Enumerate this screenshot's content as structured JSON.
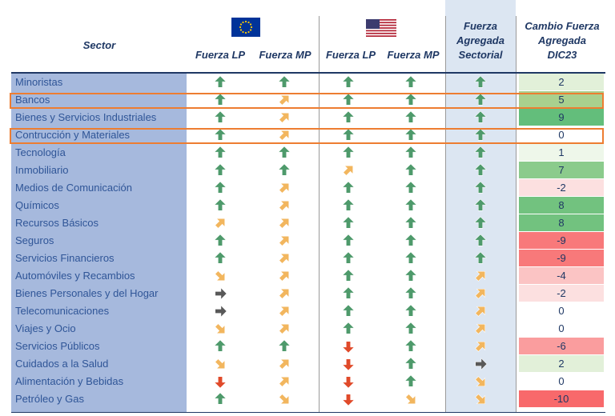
{
  "headers": {
    "sector": "Sector",
    "eu_lp": "Fuerza LP",
    "eu_mp": "Fuerza MP",
    "us_lp": "Fuerza LP",
    "us_mp": "Fuerza MP",
    "agg_l1": "Fuerza",
    "agg_l2": "Agregada",
    "agg_l3": "Sectorial",
    "chg_l1": "Cambio Fuerza",
    "chg_l2": "Agregada",
    "chg_l3": "DIC23"
  },
  "flags": {
    "eu": "eu-flag-icon",
    "us": "us-flag-icon"
  },
  "icon_colors": {
    "up": "#4E9A6B",
    "up_right": "#F2B65E",
    "right": "#595959",
    "down_right": "#F2B65E",
    "down": "#E04A2A"
  },
  "highlight_color": "#ED7D31",
  "highlighted_rows": [
    "Bancos",
    "Contrucción y Materiales"
  ],
  "rows": [
    {
      "sector": "Minoristas",
      "eu_lp": "up",
      "eu_mp": "up",
      "us_lp": "up",
      "us_mp": "up",
      "agg": "up",
      "change": "2",
      "change_color": "#E2F0D9"
    },
    {
      "sector": "Bancos",
      "eu_lp": "up",
      "eu_mp": "up_right",
      "us_lp": "up",
      "us_mp": "up",
      "agg": "up",
      "change": "5",
      "change_color": "#A9D08E"
    },
    {
      "sector": "Bienes y Servicios Industriales",
      "eu_lp": "up",
      "eu_mp": "up_right",
      "us_lp": "up",
      "us_mp": "up",
      "agg": "up",
      "change": "9",
      "change_color": "#63BE7B"
    },
    {
      "sector": "Contrucción y Materiales",
      "eu_lp": "up",
      "eu_mp": "up_right",
      "us_lp": "up",
      "us_mp": "up",
      "agg": "up",
      "change": "0",
      "change_color": "#FFFFFF"
    },
    {
      "sector": "Tecnología",
      "eu_lp": "up",
      "eu_mp": "up",
      "us_lp": "up",
      "us_mp": "up",
      "agg": "up",
      "change": "1",
      "change_color": "#EEF7EA"
    },
    {
      "sector": "Inmobiliario",
      "eu_lp": "up",
      "eu_mp": "up",
      "us_lp": "up_right",
      "us_mp": "up",
      "agg": "up",
      "change": "7",
      "change_color": "#8BCB8C"
    },
    {
      "sector": "Medios de Comunicación",
      "eu_lp": "up",
      "eu_mp": "up_right",
      "us_lp": "up",
      "us_mp": "up",
      "agg": "up",
      "change": "-2",
      "change_color": "#FCE0E0"
    },
    {
      "sector": "Químicos",
      "eu_lp": "up",
      "eu_mp": "up_right",
      "us_lp": "up",
      "us_mp": "up",
      "agg": "up",
      "change": "8",
      "change_color": "#72C27F"
    },
    {
      "sector": "Recursos Básicos",
      "eu_lp": "up_right",
      "eu_mp": "up_right",
      "us_lp": "up",
      "us_mp": "up",
      "agg": "up",
      "change": "8",
      "change_color": "#72C27F"
    },
    {
      "sector": "Seguros",
      "eu_lp": "up",
      "eu_mp": "up_right",
      "us_lp": "up",
      "us_mp": "up",
      "agg": "up",
      "change": "-9",
      "change_color": "#F8797A"
    },
    {
      "sector": "Servicios Financieros",
      "eu_lp": "up",
      "eu_mp": "up_right",
      "us_lp": "up",
      "us_mp": "up",
      "agg": "up",
      "change": "-9",
      "change_color": "#F8797A"
    },
    {
      "sector": "Automóviles y Recambios",
      "eu_lp": "down_right",
      "eu_mp": "up_right",
      "us_lp": "up",
      "us_mp": "up",
      "agg": "up_right",
      "change": "-4",
      "change_color": "#FBC4C4"
    },
    {
      "sector": "Bienes Personales y del Hogar",
      "eu_lp": "right",
      "eu_mp": "up_right",
      "us_lp": "up",
      "us_mp": "up",
      "agg": "up_right",
      "change": "-2",
      "change_color": "#FCE0E0"
    },
    {
      "sector": "Telecomunicaciones",
      "eu_lp": "right",
      "eu_mp": "up_right",
      "us_lp": "up",
      "us_mp": "up",
      "agg": "up_right",
      "change": "0",
      "change_color": "#FFFFFF"
    },
    {
      "sector": "Viajes y Ocio",
      "eu_lp": "down_right",
      "eu_mp": "up_right",
      "us_lp": "up",
      "us_mp": "up",
      "agg": "up_right",
      "change": "0",
      "change_color": "#FFFFFF"
    },
    {
      "sector": "Servicios Públicos",
      "eu_lp": "up",
      "eu_mp": "up",
      "us_lp": "down",
      "us_mp": "up",
      "agg": "up_right",
      "change": "-6",
      "change_color": "#FA9D9E"
    },
    {
      "sector": "Cuidados a la Salud",
      "eu_lp": "down_right",
      "eu_mp": "up_right",
      "us_lp": "down",
      "us_mp": "up",
      "agg": "right",
      "change": "2",
      "change_color": "#E2F0D9"
    },
    {
      "sector": "Alimentación y Bebidas",
      "eu_lp": "down",
      "eu_mp": "up_right",
      "us_lp": "down",
      "us_mp": "up",
      "agg": "down_right",
      "change": "0",
      "change_color": "#FFFFFF"
    },
    {
      "sector": "Petróleo y Gas",
      "eu_lp": "up",
      "eu_mp": "down_right",
      "us_lp": "down",
      "us_mp": "down_right",
      "agg": "down_right",
      "change": "-10",
      "change_color": "#F8696B"
    }
  ]
}
